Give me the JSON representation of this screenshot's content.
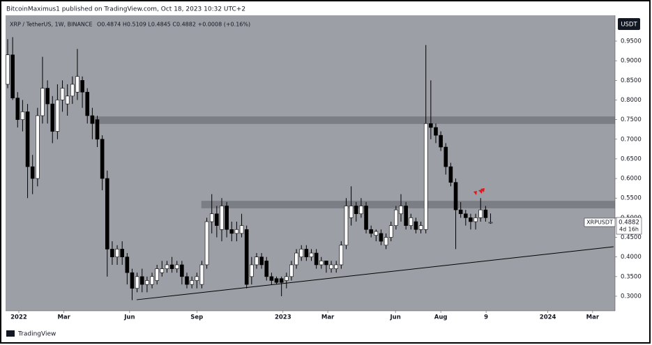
{
  "header": {
    "publisher": "BitcoinMaximus1 published on TradingView.com, Oct 18, 2023 10:32 UTC+2"
  },
  "footer": {
    "brand": "TradingView"
  },
  "chart_data": {
    "type": "candlestick",
    "title": "XRP / TetherUS, 1W, BINANCE",
    "legend_values": "O0.4874 H0.5109 L0.4845 C0.4882 +0.0008 (+0.16%)",
    "currency": "USDT",
    "symbol": "XRPUSDT",
    "countdown": "4d 16h",
    "up_color": "#ffffff",
    "down_color": "#000000",
    "background": "#9c9fa6",
    "zone_color": "#7b7e85",
    "open": [
      0.84,
      0.915,
      0.805,
      0.75,
      0.77,
      0.63,
      0.6,
      0.76,
      0.83,
      0.79,
      0.72,
      0.8,
      0.79,
      0.81,
      0.82,
      0.85,
      0.82,
      0.76,
      0.75,
      0.7,
      0.6,
      0.42,
      0.4,
      0.42,
      0.4,
      0.36,
      0.32,
      0.35,
      0.33,
      0.33,
      0.34,
      0.36,
      0.37,
      0.38,
      0.37,
      0.38,
      0.35,
      0.33,
      0.34,
      0.33,
      0.38,
      0.49,
      0.51,
      0.47,
      0.53,
      0.47,
      0.46,
      0.46,
      0.47,
      0.35,
      0.38,
      0.4,
      0.39,
      0.35,
      0.345,
      0.345,
      0.34,
      0.35,
      0.38,
      0.4,
      0.42,
      0.4,
      0.41,
      0.38,
      0.39,
      0.37,
      0.37,
      0.38,
      0.43,
      0.5,
      0.53,
      0.51,
      0.53,
      0.47,
      0.455,
      0.46,
      0.43,
      0.45,
      0.48,
      0.51,
      0.53,
      0.48,
      0.49,
      0.47,
      0.47,
      0.74,
      0.73,
      0.71,
      0.68,
      0.63,
      0.59,
      0.52,
      0.51,
      0.5,
      0.49,
      0.5,
      0.52,
      0.4874
    ],
    "high": [
      0.955,
      0.96,
      0.82,
      0.8,
      0.79,
      0.66,
      0.78,
      0.91,
      0.85,
      0.81,
      0.84,
      0.85,
      0.84,
      0.86,
      0.93,
      0.86,
      0.83,
      0.78,
      0.76,
      0.71,
      0.62,
      0.44,
      0.43,
      0.44,
      0.41,
      0.37,
      0.36,
      0.37,
      0.35,
      0.36,
      0.38,
      0.39,
      0.39,
      0.4,
      0.39,
      0.39,
      0.36,
      0.35,
      0.36,
      0.39,
      0.5,
      0.56,
      0.53,
      0.55,
      0.54,
      0.49,
      0.49,
      0.51,
      0.48,
      0.4,
      0.41,
      0.41,
      0.4,
      0.36,
      0.35,
      0.35,
      0.36,
      0.39,
      0.42,
      0.43,
      0.43,
      0.42,
      0.42,
      0.4,
      0.39,
      0.39,
      0.39,
      0.44,
      0.55,
      0.58,
      0.54,
      0.55,
      0.54,
      0.48,
      0.47,
      0.47,
      0.46,
      0.49,
      0.53,
      0.56,
      0.54,
      0.51,
      0.5,
      0.49,
      0.94,
      0.85,
      0.74,
      0.72,
      0.69,
      0.64,
      0.6,
      0.54,
      0.52,
      0.51,
      0.51,
      0.55,
      0.53,
      0.5109
    ],
    "low": [
      0.83,
      0.8,
      0.73,
      0.72,
      0.55,
      0.56,
      0.58,
      0.74,
      0.74,
      0.69,
      0.7,
      0.77,
      0.76,
      0.79,
      0.8,
      0.78,
      0.74,
      0.7,
      0.68,
      0.57,
      0.35,
      0.38,
      0.38,
      0.38,
      0.33,
      0.29,
      0.31,
      0.31,
      0.31,
      0.32,
      0.33,
      0.35,
      0.36,
      0.36,
      0.36,
      0.33,
      0.32,
      0.32,
      0.32,
      0.32,
      0.37,
      0.46,
      0.45,
      0.44,
      0.45,
      0.44,
      0.44,
      0.45,
      0.32,
      0.33,
      0.37,
      0.37,
      0.34,
      0.33,
      0.33,
      0.3,
      0.32,
      0.34,
      0.37,
      0.39,
      0.39,
      0.39,
      0.37,
      0.37,
      0.36,
      0.36,
      0.36,
      0.37,
      0.42,
      0.48,
      0.49,
      0.5,
      0.46,
      0.45,
      0.44,
      0.43,
      0.42,
      0.44,
      0.47,
      0.49,
      0.47,
      0.47,
      0.46,
      0.46,
      0.46,
      0.7,
      0.69,
      0.67,
      0.61,
      0.58,
      0.42,
      0.5,
      0.48,
      0.47,
      0.47,
      0.49,
      0.49,
      0.4845
    ],
    "close": [
      0.915,
      0.805,
      0.75,
      0.77,
      0.63,
      0.6,
      0.76,
      0.83,
      0.79,
      0.72,
      0.8,
      0.83,
      0.81,
      0.84,
      0.86,
      0.82,
      0.76,
      0.74,
      0.7,
      0.6,
      0.42,
      0.4,
      0.42,
      0.4,
      0.36,
      0.32,
      0.35,
      0.33,
      0.34,
      0.35,
      0.37,
      0.37,
      0.38,
      0.37,
      0.38,
      0.35,
      0.33,
      0.34,
      0.35,
      0.38,
      0.49,
      0.51,
      0.48,
      0.53,
      0.47,
      0.46,
      0.47,
      0.48,
      0.33,
      0.38,
      0.4,
      0.38,
      0.35,
      0.34,
      0.335,
      0.335,
      0.35,
      0.38,
      0.41,
      0.42,
      0.4,
      0.41,
      0.38,
      0.39,
      0.38,
      0.38,
      0.38,
      0.43,
      0.53,
      0.53,
      0.51,
      0.53,
      0.47,
      0.46,
      0.465,
      0.44,
      0.45,
      0.48,
      0.52,
      0.53,
      0.48,
      0.5,
      0.47,
      0.48,
      0.74,
      0.73,
      0.71,
      0.68,
      0.63,
      0.59,
      0.52,
      0.51,
      0.5,
      0.49,
      0.5,
      0.52,
      0.5,
      0.4882
    ],
    "xlim": [
      -0.42,
      122.0
    ],
    "xticks": [
      {
        "value": 2.24,
        "label": "2022"
      },
      {
        "value": 11.3,
        "label": "Mar"
      },
      {
        "value": 24.5,
        "label": "Jun"
      },
      {
        "value": 38.0,
        "label": "Sep"
      },
      {
        "value": 55.3,
        "label": "2023"
      },
      {
        "value": 64.3,
        "label": "Mar"
      },
      {
        "value": 77.9,
        "label": "Jun"
      },
      {
        "value": 87.0,
        "label": "Aug"
      },
      {
        "value": 96.1,
        "label": "9"
      },
      {
        "value": 108.5,
        "label": "2024"
      },
      {
        "value": 117.5,
        "label": "Mar"
      }
    ],
    "ylim": [
      0.2627,
      1.0157
    ],
    "yticks": [
      {
        "value": 0.95,
        "label": "0.9500"
      },
      {
        "value": 0.9,
        "label": "0.9000"
      },
      {
        "value": 0.85,
        "label": "0.8500"
      },
      {
        "value": 0.8,
        "label": "0.8000"
      },
      {
        "value": 0.75,
        "label": "0.7500"
      },
      {
        "value": 0.7,
        "label": "0.7000"
      },
      {
        "value": 0.65,
        "label": "0.6500"
      },
      {
        "value": 0.6,
        "label": "0.6000"
      },
      {
        "value": 0.55,
        "label": "0.5500"
      },
      {
        "value": 0.5,
        "label": "0.5000"
      },
      {
        "value": 0.45,
        "label": "0.4500"
      },
      {
        "value": 0.4,
        "label": "0.4000"
      },
      {
        "value": 0.35,
        "label": "0.3500"
      },
      {
        "value": 0.3,
        "label": "0.3000"
      }
    ],
    "zones": [
      {
        "x_start": 17.4,
        "ymin": 0.739,
        "ymax": 0.758
      },
      {
        "x_start": 38.9,
        "ymin": 0.524,
        "ymax": 0.543
      }
    ],
    "trendline": {
      "x": [
        25.9,
        121.7
      ],
      "y": [
        0.291,
        0.426
      ]
    }
  }
}
